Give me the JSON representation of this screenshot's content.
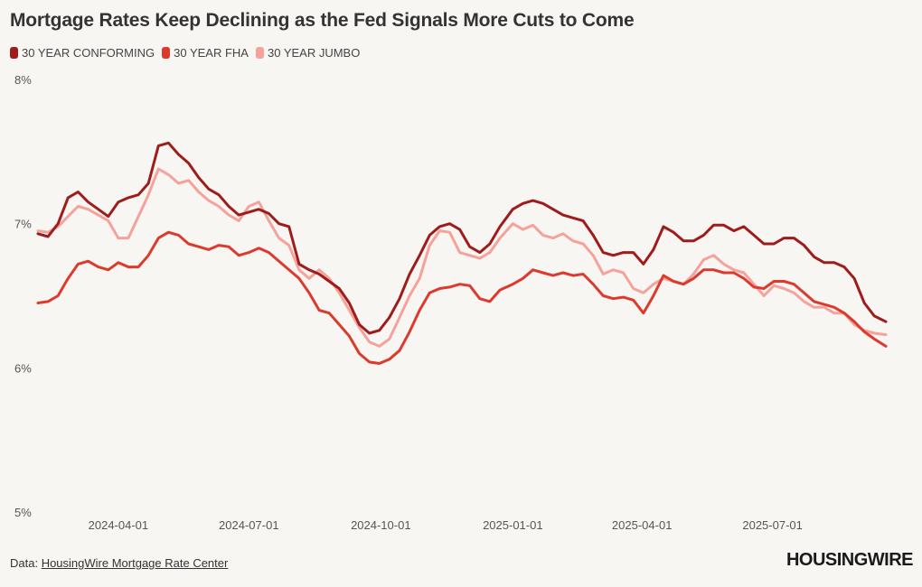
{
  "title": "Mortgage Rates Keep Declining as the Fed Signals More Cuts to Come",
  "footer": {
    "source_prefix": "Data: ",
    "source_link": "HousingWire Mortgage Rate Center",
    "logo": "HOUSINGWIRE"
  },
  "chart_data": {
    "type": "line",
    "title": "Mortgage Rates Keep Declining as the Fed Signals More Cuts to Come",
    "xlabel": "",
    "ylabel": "",
    "x_range": [
      "2024-02-05",
      "2025-09-18"
    ],
    "ylim": [
      5,
      8
    ],
    "y_ticks": [
      {
        "value": 8,
        "label": "8%"
      },
      {
        "value": 7,
        "label": "7%"
      },
      {
        "value": 6,
        "label": "6%"
      },
      {
        "value": 5,
        "label": "5%"
      }
    ],
    "x_ticks": [
      {
        "date": "2024-04-01",
        "label": "2024-04-01"
      },
      {
        "date": "2024-07-01",
        "label": "2024-07-01"
      },
      {
        "date": "2024-10-01",
        "label": "2024-10-01"
      },
      {
        "date": "2025-01-01",
        "label": "2025-01-01"
      },
      {
        "date": "2025-04-01",
        "label": "2025-04-01"
      },
      {
        "date": "2025-07-01",
        "label": "2025-07-01"
      }
    ],
    "grid": false,
    "legend_position": "top-left",
    "series": [
      {
        "name": "30 YEAR CONFORMING",
        "color": "#9e1c1c",
        "points": [
          [
            "2024-02-05",
            6.93
          ],
          [
            "2024-02-12",
            6.91
          ],
          [
            "2024-02-19",
            7.0
          ],
          [
            "2024-02-26",
            7.18
          ],
          [
            "2024-03-04",
            7.22
          ],
          [
            "2024-03-11",
            7.15
          ],
          [
            "2024-03-18",
            7.1
          ],
          [
            "2024-03-25",
            7.05
          ],
          [
            "2024-04-01",
            7.15
          ],
          [
            "2024-04-08",
            7.18
          ],
          [
            "2024-04-15",
            7.2
          ],
          [
            "2024-04-22",
            7.28
          ],
          [
            "2024-04-29",
            7.54
          ],
          [
            "2024-05-06",
            7.56
          ],
          [
            "2024-05-13",
            7.48
          ],
          [
            "2024-05-20",
            7.42
          ],
          [
            "2024-05-27",
            7.32
          ],
          [
            "2024-06-03",
            7.24
          ],
          [
            "2024-06-10",
            7.2
          ],
          [
            "2024-06-17",
            7.12
          ],
          [
            "2024-06-24",
            7.06
          ],
          [
            "2024-07-01",
            7.08
          ],
          [
            "2024-07-08",
            7.1
          ],
          [
            "2024-07-15",
            7.07
          ],
          [
            "2024-07-22",
            7.0
          ],
          [
            "2024-07-29",
            6.98
          ],
          [
            "2024-08-05",
            6.72
          ],
          [
            "2024-08-12",
            6.68
          ],
          [
            "2024-08-19",
            6.65
          ],
          [
            "2024-08-26",
            6.6
          ],
          [
            "2024-09-02",
            6.55
          ],
          [
            "2024-09-09",
            6.45
          ],
          [
            "2024-09-16",
            6.3
          ],
          [
            "2024-09-23",
            6.24
          ],
          [
            "2024-09-30",
            6.26
          ],
          [
            "2024-10-07",
            6.35
          ],
          [
            "2024-10-14",
            6.48
          ],
          [
            "2024-10-21",
            6.65
          ],
          [
            "2024-10-28",
            6.78
          ],
          [
            "2024-11-04",
            6.92
          ],
          [
            "2024-11-11",
            6.98
          ],
          [
            "2024-11-18",
            7.0
          ],
          [
            "2024-11-25",
            6.96
          ],
          [
            "2024-12-02",
            6.84
          ],
          [
            "2024-12-09",
            6.8
          ],
          [
            "2024-12-16",
            6.86
          ],
          [
            "2024-12-23",
            6.98
          ],
          [
            "2025-01-01",
            7.1
          ],
          [
            "2025-01-08",
            7.14
          ],
          [
            "2025-01-15",
            7.16
          ],
          [
            "2025-01-22",
            7.14
          ],
          [
            "2025-01-29",
            7.1
          ],
          [
            "2025-02-05",
            7.06
          ],
          [
            "2025-02-12",
            7.04
          ],
          [
            "2025-02-19",
            7.02
          ],
          [
            "2025-02-26",
            6.92
          ],
          [
            "2025-03-05",
            6.8
          ],
          [
            "2025-03-12",
            6.78
          ],
          [
            "2025-03-19",
            6.8
          ],
          [
            "2025-03-26",
            6.8
          ],
          [
            "2025-04-02",
            6.72
          ],
          [
            "2025-04-09",
            6.82
          ],
          [
            "2025-04-16",
            6.98
          ],
          [
            "2025-04-23",
            6.94
          ],
          [
            "2025-04-30",
            6.88
          ],
          [
            "2025-05-07",
            6.88
          ],
          [
            "2025-05-14",
            6.92
          ],
          [
            "2025-05-21",
            6.99
          ],
          [
            "2025-05-28",
            6.99
          ],
          [
            "2025-06-04",
            6.95
          ],
          [
            "2025-06-11",
            6.98
          ],
          [
            "2025-06-18",
            6.92
          ],
          [
            "2025-06-25",
            6.86
          ],
          [
            "2025-07-02",
            6.86
          ],
          [
            "2025-07-09",
            6.9
          ],
          [
            "2025-07-16",
            6.9
          ],
          [
            "2025-07-23",
            6.85
          ],
          [
            "2025-07-30",
            6.77
          ],
          [
            "2025-08-06",
            6.73
          ],
          [
            "2025-08-13",
            6.73
          ],
          [
            "2025-08-20",
            6.7
          ],
          [
            "2025-08-27",
            6.62
          ],
          [
            "2025-09-03",
            6.45
          ],
          [
            "2025-09-10",
            6.36
          ],
          [
            "2025-09-18",
            6.32
          ]
        ]
      },
      {
        "name": "30 YEAR FHA",
        "color": "#dc3a2d",
        "points": [
          [
            "2024-02-05",
            6.45
          ],
          [
            "2024-02-12",
            6.46
          ],
          [
            "2024-02-19",
            6.5
          ],
          [
            "2024-02-26",
            6.62
          ],
          [
            "2024-03-04",
            6.72
          ],
          [
            "2024-03-11",
            6.74
          ],
          [
            "2024-03-18",
            6.7
          ],
          [
            "2024-03-25",
            6.68
          ],
          [
            "2024-04-01",
            6.73
          ],
          [
            "2024-04-08",
            6.7
          ],
          [
            "2024-04-15",
            6.7
          ],
          [
            "2024-04-22",
            6.78
          ],
          [
            "2024-04-29",
            6.9
          ],
          [
            "2024-05-06",
            6.94
          ],
          [
            "2024-05-13",
            6.92
          ],
          [
            "2024-05-20",
            6.86
          ],
          [
            "2024-05-27",
            6.84
          ],
          [
            "2024-06-03",
            6.82
          ],
          [
            "2024-06-10",
            6.85
          ],
          [
            "2024-06-17",
            6.84
          ],
          [
            "2024-06-24",
            6.78
          ],
          [
            "2024-07-01",
            6.8
          ],
          [
            "2024-07-08",
            6.83
          ],
          [
            "2024-07-15",
            6.8
          ],
          [
            "2024-07-22",
            6.74
          ],
          [
            "2024-07-29",
            6.68
          ],
          [
            "2024-08-05",
            6.62
          ],
          [
            "2024-08-12",
            6.52
          ],
          [
            "2024-08-19",
            6.4
          ],
          [
            "2024-08-26",
            6.38
          ],
          [
            "2024-09-02",
            6.3
          ],
          [
            "2024-09-09",
            6.22
          ],
          [
            "2024-09-16",
            6.1
          ],
          [
            "2024-09-23",
            6.04
          ],
          [
            "2024-09-30",
            6.03
          ],
          [
            "2024-10-07",
            6.06
          ],
          [
            "2024-10-14",
            6.12
          ],
          [
            "2024-10-21",
            6.25
          ],
          [
            "2024-10-28",
            6.4
          ],
          [
            "2024-11-04",
            6.52
          ],
          [
            "2024-11-11",
            6.55
          ],
          [
            "2024-11-18",
            6.56
          ],
          [
            "2024-11-25",
            6.58
          ],
          [
            "2024-12-02",
            6.57
          ],
          [
            "2024-12-09",
            6.48
          ],
          [
            "2024-12-16",
            6.46
          ],
          [
            "2024-12-23",
            6.54
          ],
          [
            "2025-01-01",
            6.58
          ],
          [
            "2025-01-08",
            6.62
          ],
          [
            "2025-01-15",
            6.68
          ],
          [
            "2025-01-22",
            6.66
          ],
          [
            "2025-01-29",
            6.64
          ],
          [
            "2025-02-05",
            6.66
          ],
          [
            "2025-02-12",
            6.64
          ],
          [
            "2025-02-19",
            6.65
          ],
          [
            "2025-02-26",
            6.58
          ],
          [
            "2025-03-05",
            6.5
          ],
          [
            "2025-03-12",
            6.48
          ],
          [
            "2025-03-19",
            6.49
          ],
          [
            "2025-03-26",
            6.47
          ],
          [
            "2025-04-02",
            6.38
          ],
          [
            "2025-04-09",
            6.5
          ],
          [
            "2025-04-16",
            6.64
          ],
          [
            "2025-04-23",
            6.6
          ],
          [
            "2025-04-30",
            6.58
          ],
          [
            "2025-05-07",
            6.62
          ],
          [
            "2025-05-14",
            6.68
          ],
          [
            "2025-05-21",
            6.68
          ],
          [
            "2025-05-28",
            6.66
          ],
          [
            "2025-06-04",
            6.66
          ],
          [
            "2025-06-11",
            6.62
          ],
          [
            "2025-06-18",
            6.56
          ],
          [
            "2025-06-25",
            6.55
          ],
          [
            "2025-07-02",
            6.6
          ],
          [
            "2025-07-09",
            6.6
          ],
          [
            "2025-07-16",
            6.58
          ],
          [
            "2025-07-23",
            6.52
          ],
          [
            "2025-07-30",
            6.46
          ],
          [
            "2025-08-06",
            6.44
          ],
          [
            "2025-08-13",
            6.42
          ],
          [
            "2025-08-20",
            6.38
          ],
          [
            "2025-08-27",
            6.32
          ],
          [
            "2025-09-03",
            6.25
          ],
          [
            "2025-09-10",
            6.2
          ],
          [
            "2025-09-18",
            6.15
          ]
        ]
      },
      {
        "name": "30 YEAR JUMBO",
        "color": "#f4a29b",
        "points": [
          [
            "2024-02-05",
            6.95
          ],
          [
            "2024-02-12",
            6.94
          ],
          [
            "2024-02-19",
            6.98
          ],
          [
            "2024-02-26",
            7.05
          ],
          [
            "2024-03-04",
            7.12
          ],
          [
            "2024-03-11",
            7.1
          ],
          [
            "2024-03-18",
            7.06
          ],
          [
            "2024-03-25",
            7.02
          ],
          [
            "2024-04-01",
            6.9
          ],
          [
            "2024-04-08",
            6.9
          ],
          [
            "2024-04-15",
            7.05
          ],
          [
            "2024-04-22",
            7.2
          ],
          [
            "2024-04-29",
            7.38
          ],
          [
            "2024-05-06",
            7.34
          ],
          [
            "2024-05-13",
            7.28
          ],
          [
            "2024-05-20",
            7.3
          ],
          [
            "2024-05-27",
            7.22
          ],
          [
            "2024-06-03",
            7.16
          ],
          [
            "2024-06-10",
            7.12
          ],
          [
            "2024-06-17",
            7.06
          ],
          [
            "2024-06-24",
            7.02
          ],
          [
            "2024-07-01",
            7.12
          ],
          [
            "2024-07-08",
            7.15
          ],
          [
            "2024-07-15",
            7.02
          ],
          [
            "2024-07-22",
            6.9
          ],
          [
            "2024-07-29",
            6.85
          ],
          [
            "2024-08-05",
            6.68
          ],
          [
            "2024-08-12",
            6.62
          ],
          [
            "2024-08-19",
            6.68
          ],
          [
            "2024-08-26",
            6.62
          ],
          [
            "2024-09-02",
            6.52
          ],
          [
            "2024-09-09",
            6.4
          ],
          [
            "2024-09-16",
            6.28
          ],
          [
            "2024-09-23",
            6.18
          ],
          [
            "2024-09-30",
            6.15
          ],
          [
            "2024-10-07",
            6.2
          ],
          [
            "2024-10-14",
            6.35
          ],
          [
            "2024-10-21",
            6.5
          ],
          [
            "2024-10-28",
            6.62
          ],
          [
            "2024-11-04",
            6.85
          ],
          [
            "2024-11-11",
            6.95
          ],
          [
            "2024-11-18",
            6.94
          ],
          [
            "2024-11-25",
            6.8
          ],
          [
            "2024-12-02",
            6.78
          ],
          [
            "2024-12-09",
            6.76
          ],
          [
            "2024-12-16",
            6.8
          ],
          [
            "2024-12-23",
            6.9
          ],
          [
            "2025-01-01",
            7.0
          ],
          [
            "2025-01-08",
            6.96
          ],
          [
            "2025-01-15",
            6.99
          ],
          [
            "2025-01-22",
            6.92
          ],
          [
            "2025-01-29",
            6.9
          ],
          [
            "2025-02-05",
            6.93
          ],
          [
            "2025-02-12",
            6.88
          ],
          [
            "2025-02-19",
            6.86
          ],
          [
            "2025-02-26",
            6.78
          ],
          [
            "2025-03-05",
            6.65
          ],
          [
            "2025-03-12",
            6.68
          ],
          [
            "2025-03-19",
            6.66
          ],
          [
            "2025-03-26",
            6.55
          ],
          [
            "2025-04-02",
            6.52
          ],
          [
            "2025-04-09",
            6.58
          ],
          [
            "2025-04-16",
            6.62
          ],
          [
            "2025-04-23",
            6.6
          ],
          [
            "2025-04-30",
            6.58
          ],
          [
            "2025-05-07",
            6.65
          ],
          [
            "2025-05-14",
            6.75
          ],
          [
            "2025-05-21",
            6.78
          ],
          [
            "2025-05-28",
            6.72
          ],
          [
            "2025-06-04",
            6.68
          ],
          [
            "2025-06-11",
            6.66
          ],
          [
            "2025-06-18",
            6.58
          ],
          [
            "2025-06-25",
            6.5
          ],
          [
            "2025-07-02",
            6.57
          ],
          [
            "2025-07-09",
            6.55
          ],
          [
            "2025-07-16",
            6.52
          ],
          [
            "2025-07-23",
            6.46
          ],
          [
            "2025-07-30",
            6.42
          ],
          [
            "2025-08-06",
            6.42
          ],
          [
            "2025-08-13",
            6.38
          ],
          [
            "2025-08-20",
            6.38
          ],
          [
            "2025-08-27",
            6.3
          ],
          [
            "2025-09-03",
            6.26
          ],
          [
            "2025-09-10",
            6.24
          ],
          [
            "2025-09-18",
            6.23
          ]
        ]
      }
    ]
  }
}
